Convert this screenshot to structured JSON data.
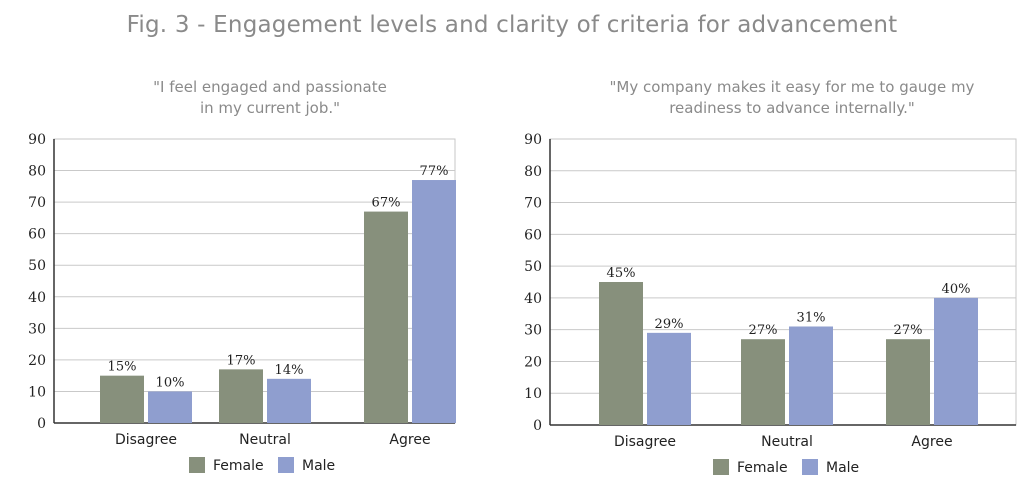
{
  "figure": {
    "title": "Fig. 3 - Engagement levels and clarity of criteria for advancement"
  },
  "chart_data": [
    {
      "type": "bar",
      "title_lines": [
        "\"I feel engaged and passionate",
        "in my current job.\""
      ],
      "categories": [
        "Disagree",
        "Neutral",
        "Agree"
      ],
      "series": [
        {
          "name": "Female",
          "color": "#87907c",
          "values": [
            15,
            17,
            67
          ],
          "labels": [
            "15%",
            "17%",
            "67%"
          ]
        },
        {
          "name": "Male",
          "color": "#8f9ecf",
          "values": [
            10,
            14,
            77
          ],
          "labels": [
            "10%",
            "14%",
            "77%"
          ]
        }
      ],
      "ylim": [
        0,
        90
      ],
      "yticks": [
        0,
        10,
        20,
        30,
        40,
        50,
        60,
        70,
        80,
        90
      ],
      "grid": true,
      "legend": "bottom-center"
    },
    {
      "type": "bar",
      "title_lines": [
        "\"My company makes it easy for me to gauge my",
        "readiness to advance internally.\""
      ],
      "categories": [
        "Disagree",
        "Neutral",
        "Agree"
      ],
      "series": [
        {
          "name": "Female",
          "color": "#87907c",
          "values": [
            45,
            27,
            27
          ],
          "labels": [
            "45%",
            "27%",
            "27%"
          ]
        },
        {
          "name": "Male",
          "color": "#8f9ecf",
          "values": [
            29,
            31,
            40
          ],
          "labels": [
            "29%",
            "31%",
            "40%"
          ]
        }
      ],
      "ylim": [
        0,
        90
      ],
      "yticks": [
        0,
        10,
        20,
        30,
        40,
        50,
        60,
        70,
        80,
        90
      ],
      "grid": true,
      "legend": "bottom-center"
    }
  ]
}
